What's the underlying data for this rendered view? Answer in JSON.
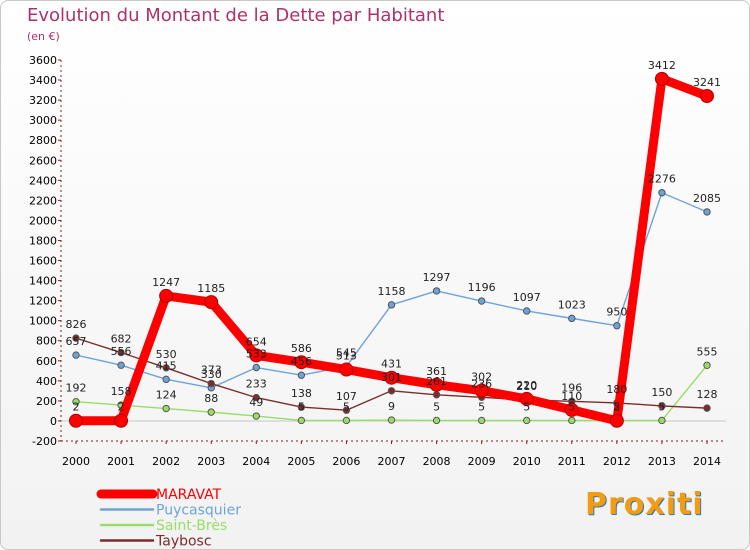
{
  "chart_data": {
    "type": "line",
    "title": "Evolution du Montant de la Dette par Habitant",
    "subtitle": "(en €)",
    "xlabel": "",
    "ylabel": "",
    "categories": [
      "2000",
      "2001",
      "2002",
      "2003",
      "2004",
      "2005",
      "2006",
      "2007",
      "2008",
      "2009",
      "2010",
      "2011",
      "2012",
      "2013",
      "2014"
    ],
    "ylim": [
      -200,
      3600
    ],
    "yticks": [
      -200,
      0,
      200,
      400,
      600,
      800,
      1000,
      1200,
      1400,
      1600,
      1800,
      2000,
      2200,
      2400,
      2600,
      2800,
      3000,
      3200,
      3400,
      3600
    ],
    "grid": false,
    "legend_position": "bottom-left",
    "series": [
      {
        "name": "MARAVAT",
        "color": "#ff0000",
        "values": [
          2,
          2,
          1247,
          1185,
          654,
          586,
          513,
          431,
          361,
          302,
          220,
          110,
          2,
          3412,
          3241
        ]
      },
      {
        "name": "Puycasquier",
        "color": "#6ea3d8",
        "values": [
          657,
          556,
          415,
          330,
          533,
          456,
          545,
          1158,
          1297,
          1196,
          1097,
          1023,
          950,
          2276,
          2085
        ]
      },
      {
        "name": "Saint-Brès",
        "color": "#99dd66",
        "values": [
          192,
          158,
          124,
          88,
          49,
          5,
          5,
          9,
          5,
          5,
          5,
          5,
          5,
          5,
          555
        ]
      },
      {
        "name": "Taybosc",
        "color": "#7b2d2d",
        "values": [
          826,
          682,
          530,
          373,
          233,
          138,
          107,
          301,
          261,
          236,
          210,
          196,
          180,
          150,
          128
        ]
      }
    ]
  },
  "brand": "Proxiti"
}
